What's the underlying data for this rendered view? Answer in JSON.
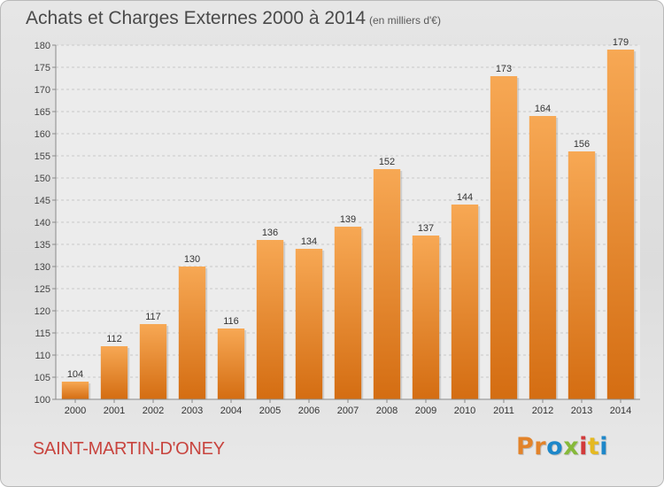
{
  "header": {
    "title": "Achats et Charges Externes 2000 à 2014",
    "unit": "(en milliers d'€)"
  },
  "footer": {
    "place": "SAINT-MARTIN-D'ONEY",
    "brand": "Proxiti"
  },
  "colors": {
    "bar_top": "#f7a854",
    "bar_bottom": "#d46d12",
    "place_text": "#c8443e",
    "brand_letters": [
      "#e2832a",
      "#e2832a",
      "#1d87c9",
      "#86b93a",
      "#d23a3a",
      "#e5b921",
      "#1d87c9"
    ]
  },
  "chart_data": {
    "type": "bar",
    "categories": [
      "2000",
      "2001",
      "2002",
      "2003",
      "2004",
      "2005",
      "2006",
      "2007",
      "2008",
      "2009",
      "2010",
      "2011",
      "2012",
      "2013",
      "2014"
    ],
    "values": [
      104,
      112,
      117,
      130,
      116,
      136,
      134,
      139,
      152,
      137,
      144,
      173,
      164,
      156,
      179
    ],
    "ylim": [
      100,
      180
    ],
    "yticks": [
      100,
      105,
      110,
      115,
      120,
      125,
      130,
      135,
      140,
      145,
      150,
      155,
      160,
      165,
      170,
      175,
      180
    ],
    "grid": true,
    "data_labels": true
  }
}
